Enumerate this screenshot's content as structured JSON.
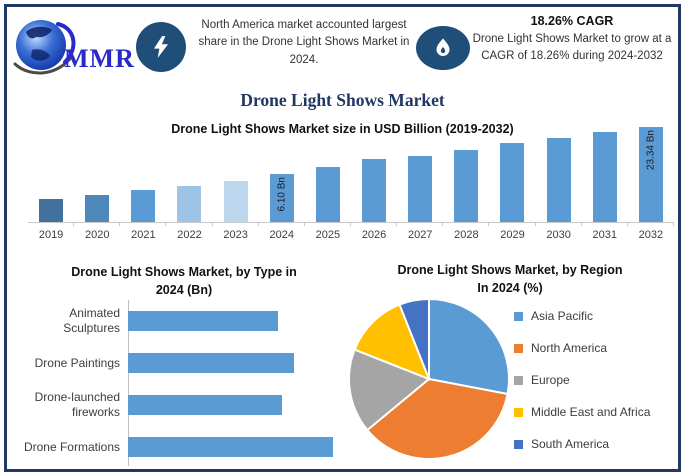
{
  "header": {
    "logo_text": "MMR",
    "callout_left": {
      "text": "North America market accounted largest share in the Drone Light Shows Market in 2024."
    },
    "callout_right": {
      "heading": "18.26% CAGR",
      "text": "Drone Light Shows Market to grow at a CAGR of 18.26% during 2024-2032"
    }
  },
  "page_title": "Drone Light Shows Market",
  "colors": {
    "frame_border": "#1F3864",
    "icon_circle": "#1F4E79",
    "title_navy": "#1F3864",
    "accent_blue": "#5B9BD5",
    "axis_gray": "#C8C8C8"
  },
  "chart_data": [
    {
      "type": "bar",
      "title": "Drone Light Shows Market size in USD Billion (2019-2032)",
      "ylabel": "USD Billion",
      "categories": [
        "2019",
        "2020",
        "2021",
        "2022",
        "2023",
        "2024",
        "2025",
        "2026",
        "2027",
        "2028",
        "2029",
        "2030",
        "2031",
        "2032"
      ],
      "labeled_values_bn": {
        "2024": 6.1,
        "2032": 23.34
      },
      "bar_labels": {
        "2024": "6.10 Bn",
        "2032": "23.34 Bn"
      },
      "relative_heights": [
        23,
        27,
        32,
        36,
        41,
        48,
        55,
        63,
        66,
        72,
        79,
        84,
        90,
        95
      ],
      "bar_colors": [
        "#41719C",
        "#4E87BA",
        "#5B9BD5",
        "#9DC3E6",
        "#BDD7EE",
        "#5B9BD5",
        "#5B9BD5",
        "#5B9BD5",
        "#5B9BD5",
        "#5B9BD5",
        "#5B9BD5",
        "#5B9BD5",
        "#5B9BD5",
        "#5B9BD5"
      ],
      "grid": false
    },
    {
      "type": "bar",
      "orientation": "horizontal",
      "title": "Drone Light Shows Market, by Type in 2024 (Bn)",
      "title_lines": [
        "Drone Light Shows Market, by Type in",
        "2024 (Bn)"
      ],
      "categories": [
        "Animated Sculptures",
        "Drone Paintings",
        "Drone-launched fireworks",
        "Drone Formations"
      ],
      "relative_values": [
        0.73,
        0.81,
        0.75,
        1.0
      ],
      "bar_color": "#5B9BD5",
      "grid": false
    },
    {
      "type": "pie",
      "title": "Drone Light Shows Market, by Region In 2024 (%)",
      "title_lines": [
        "Drone Light Shows Market, by Region",
        "In 2024 (%)"
      ],
      "labels": [
        "Asia Pacific",
        "North America",
        "Europe",
        "Middle East and Africa",
        "South America"
      ],
      "values_pct_est": [
        28,
        36,
        17,
        13,
        6
      ],
      "colors": [
        "#5B9BD5",
        "#ED7D31",
        "#A5A5A5",
        "#FFC000",
        "#4472C4"
      ],
      "legend_position": "right"
    }
  ]
}
